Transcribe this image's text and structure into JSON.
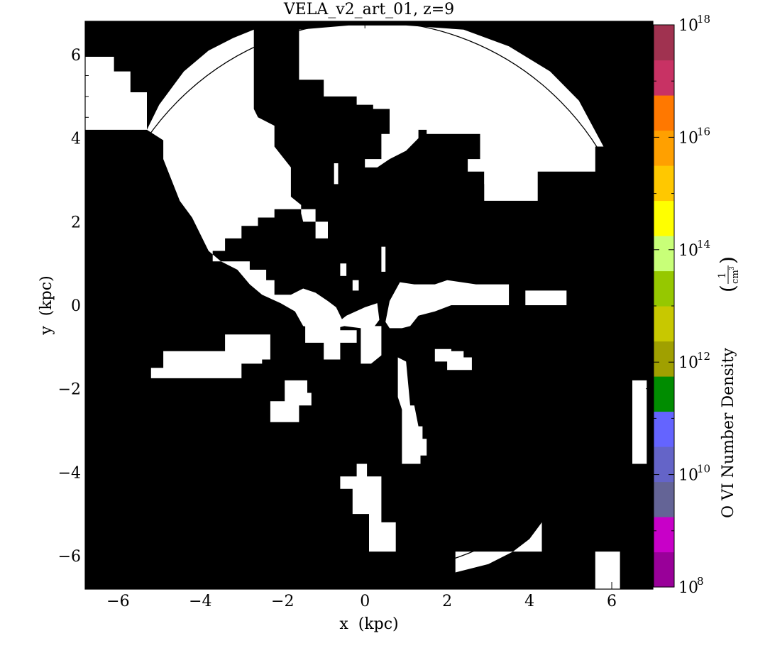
{
  "chart_data": {
    "type": "heatmap",
    "title": "VELA_v2_art_01, z=9",
    "xlabel": "x  (kpc)",
    "ylabel": "y  (kpc)",
    "xlim": [
      -6.8,
      7.0
    ],
    "ylim": [
      -6.8,
      6.8
    ],
    "x_ticks": [
      {
        "value": -6,
        "label": "−6"
      },
      {
        "value": -4,
        "label": "−4"
      },
      {
        "value": -2,
        "label": "−2"
      },
      {
        "value": 0,
        "label": "0"
      },
      {
        "value": 2,
        "label": "2"
      },
      {
        "value": 4,
        "label": "4"
      },
      {
        "value": 6,
        "label": "6"
      }
    ],
    "y_ticks": [
      {
        "value": 6,
        "label": "6"
      },
      {
        "value": 4,
        "label": "4"
      },
      {
        "value": 2,
        "label": "2"
      },
      {
        "value": 0,
        "label": "0"
      },
      {
        "value": -2,
        "label": "−2"
      },
      {
        "value": -4,
        "label": "−4"
      },
      {
        "value": -6,
        "label": "−6"
      }
    ],
    "circle": {
      "center": [
        0.1,
        0.2
      ],
      "radius": 6.6
    },
    "colorbar": {
      "label": "O VI Number Density",
      "unit_numerator": "1",
      "unit_denominator": "cm",
      "unit_power": "3",
      "scale": "log",
      "range_exponents": [
        8,
        18
      ],
      "ticks": [
        {
          "base": "10",
          "exp": "18",
          "value_exp": 18
        },
        {
          "base": "10",
          "exp": "16",
          "value_exp": 16
        },
        {
          "base": "10",
          "exp": "14",
          "value_exp": 14
        },
        {
          "base": "10",
          "exp": "12",
          "value_exp": 12
        },
        {
          "base": "10",
          "exp": "10",
          "value_exp": 10
        },
        {
          "base": "10",
          "exp": "8",
          "value_exp": 8
        }
      ],
      "colors": [
        "#990099",
        "#c800c8",
        "#646496",
        "#6464c8",
        "#6464ff",
        "#008c00",
        "#a0a000",
        "#c8c800",
        "#96c800",
        "#c8ff78",
        "#ffff00",
        "#ffc800",
        "#ffa000",
        "#ff7800",
        "#c83264",
        "#a03250"
      ]
    },
    "regions": [
      {
        "value": "high",
        "color": "#ffffff",
        "shapes": [
          [
            [
              -6.8,
              5.95
            ],
            [
              -6.1,
              5.95
            ],
            [
              -6.1,
              5.6
            ],
            [
              -5.7,
              5.6
            ],
            [
              -5.7,
              5.1
            ],
            [
              -5.3,
              5.1
            ],
            [
              -5.3,
              4.2
            ],
            [
              -5.5,
              4.2
            ],
            [
              -6.8,
              4.2
            ]
          ],
          [
            [
              -5.3,
              4.2
            ],
            [
              -5.0,
              4.8
            ],
            [
              -4.4,
              5.6
            ],
            [
              -3.8,
              6.1
            ],
            [
              -3.2,
              6.4
            ],
            [
              -2.7,
              6.6
            ],
            [
              -2.7,
              5.3
            ],
            [
              -2.7,
              4.7
            ],
            [
              -2.6,
              4.5
            ],
            [
              -2.2,
              4.3
            ],
            [
              -2.2,
              3.8
            ],
            [
              -1.8,
              3.3
            ],
            [
              -1.8,
              2.6
            ],
            [
              -1.55,
              2.4
            ],
            [
              -1.55,
              2.2
            ],
            [
              -1.5,
              2.0
            ],
            [
              -0.9,
              2.0
            ],
            [
              -0.9,
              1.6
            ],
            [
              -1.2,
              1.6
            ],
            [
              -1.2,
              2.3
            ],
            [
              -1.8,
              2.3
            ],
            [
              -2.2,
              2.3
            ],
            [
              -2.2,
              2.1
            ],
            [
              -2.6,
              2.1
            ],
            [
              -2.6,
              1.9
            ],
            [
              -3.0,
              1.9
            ],
            [
              -3.0,
              1.6
            ],
            [
              -3.4,
              1.6
            ],
            [
              -3.4,
              1.3
            ],
            [
              -3.7,
              1.3
            ],
            [
              -3.7,
              1.05
            ],
            [
              -2.8,
              1.05
            ],
            [
              -2.8,
              0.85
            ],
            [
              -2.4,
              0.85
            ],
            [
              -2.4,
              0.6
            ],
            [
              -2.2,
              0.6
            ],
            [
              -2.2,
              0.25
            ],
            [
              -1.8,
              0.25
            ],
            [
              -1.5,
              0.4
            ],
            [
              -1.2,
              0.3
            ],
            [
              -0.9,
              0.1
            ],
            [
              -0.7,
              -0.05
            ],
            [
              -0.55,
              -0.35
            ],
            [
              -0.8,
              -0.55
            ],
            [
              -1.2,
              -0.55
            ],
            [
              -1.5,
              -0.5
            ],
            [
              -1.7,
              -0.15
            ],
            [
              -2.05,
              0.05
            ],
            [
              -2.5,
              0.25
            ],
            [
              -2.8,
              0.5
            ],
            [
              -3.1,
              0.85
            ],
            [
              -3.5,
              1.05
            ],
            [
              -3.8,
              1.3
            ],
            [
              -4.2,
              2.1
            ],
            [
              -4.5,
              2.5
            ],
            [
              -4.9,
              3.5
            ],
            [
              -4.9,
              3.95
            ]
          ],
          [
            [
              -1.6,
              6.6
            ],
            [
              -1.6,
              5.4
            ],
            [
              -1.0,
              5.4
            ],
            [
              -1.0,
              5.0
            ],
            [
              -0.6,
              5.0
            ],
            [
              -0.6,
              5.0
            ],
            [
              -0.2,
              5.0
            ],
            [
              -0.2,
              4.8
            ],
            [
              0.2,
              4.8
            ],
            [
              0.2,
              4.7
            ],
            [
              0.6,
              4.7
            ],
            [
              0.6,
              4.1
            ],
            [
              0.4,
              4.1
            ],
            [
              0.4,
              3.5
            ],
            [
              0.0,
              3.5
            ],
            [
              0.0,
              3.3
            ],
            [
              0.3,
              3.3
            ],
            [
              0.6,
              3.5
            ],
            [
              1.0,
              3.7
            ],
            [
              1.3,
              4.0
            ],
            [
              1.3,
              4.2
            ],
            [
              1.5,
              4.2
            ],
            [
              1.5,
              4.1
            ],
            [
              2.8,
              4.1
            ],
            [
              2.8,
              3.5
            ],
            [
              2.5,
              3.5
            ],
            [
              2.5,
              3.2
            ],
            [
              2.9,
              3.2
            ],
            [
              2.9,
              2.5
            ],
            [
              4.2,
              2.5
            ],
            [
              4.2,
              3.2
            ],
            [
              5.6,
              3.2
            ],
            [
              5.6,
              3.8
            ],
            [
              5.8,
              3.8
            ],
            [
              5.2,
              4.9
            ],
            [
              4.5,
              5.6
            ],
            [
              3.5,
              6.2
            ],
            [
              2.4,
              6.6
            ],
            [
              1.0,
              6.7
            ],
            [
              -0.4,
              6.7
            ]
          ],
          [
            [
              -0.75,
              3.4
            ],
            [
              -0.65,
              3.4
            ],
            [
              -0.65,
              2.9
            ],
            [
              -0.75,
              2.9
            ]
          ],
          [
            [
              2.9,
              3.2
            ],
            [
              3.3,
              3.2
            ],
            [
              3.3,
              2.9
            ],
            [
              2.9,
              2.9
            ]
          ],
          [
            [
              0.5,
              -0.4
            ],
            [
              0.6,
              0.1
            ],
            [
              0.85,
              0.55
            ],
            [
              1.2,
              0.5
            ],
            [
              1.7,
              0.5
            ],
            [
              2.0,
              0.6
            ],
            [
              2.7,
              0.5
            ],
            [
              3.5,
              0.5
            ],
            [
              3.5,
              0.0
            ],
            [
              3.9,
              0.0
            ],
            [
              3.9,
              0.35
            ],
            [
              4.9,
              0.35
            ],
            [
              4.9,
              0.0
            ],
            [
              4.0,
              0.0
            ],
            [
              3.4,
              0.0
            ],
            [
              2.5,
              0.0
            ],
            [
              2.1,
              0.0
            ],
            [
              1.7,
              -0.15
            ],
            [
              1.3,
              -0.25
            ],
            [
              1.1,
              -0.5
            ],
            [
              0.9,
              -0.55
            ],
            [
              0.6,
              -0.55
            ]
          ],
          [
            [
              -0.1,
              -1.2
            ],
            [
              -0.1,
              -0.5
            ],
            [
              0.4,
              -0.5
            ],
            [
              0.4,
              -1.2
            ],
            [
              0.15,
              -1.4
            ],
            [
              -0.1,
              -1.4
            ]
          ],
          [
            [
              -1.45,
              -0.9
            ],
            [
              -1.45,
              -0.35
            ],
            [
              -0.6,
              -0.35
            ],
            [
              -0.6,
              -0.6
            ],
            [
              -0.2,
              -0.6
            ],
            [
              -0.2,
              -0.9
            ],
            [
              -0.6,
              -0.9
            ],
            [
              -0.6,
              -1.3
            ],
            [
              -1.0,
              -1.3
            ],
            [
              -1.0,
              -0.9
            ]
          ],
          [
            [
              -5.2,
              -1.5
            ],
            [
              -4.9,
              -1.5
            ],
            [
              -4.9,
              -1.1
            ],
            [
              -3.4,
              -1.1
            ],
            [
              -3.4,
              -0.7
            ],
            [
              -2.3,
              -0.7
            ],
            [
              -2.3,
              -1.3
            ],
            [
              -2.5,
              -1.3
            ],
            [
              -2.5,
              -1.4
            ],
            [
              -3.0,
              -1.4
            ],
            [
              -3.0,
              -1.75
            ],
            [
              -5.2,
              -1.75
            ]
          ],
          [
            [
              -2.3,
              -2.3
            ],
            [
              -1.95,
              -2.3
            ],
            [
              -1.95,
              -1.8
            ],
            [
              -1.4,
              -1.8
            ],
            [
              -1.4,
              -2.1
            ],
            [
              -1.3,
              -2.1
            ],
            [
              -1.3,
              -2.4
            ],
            [
              -1.6,
              -2.4
            ],
            [
              -1.6,
              -2.8
            ],
            [
              -2.3,
              -2.8
            ]
          ],
          [
            [
              0.8,
              -1.25
            ],
            [
              1.0,
              -1.35
            ],
            [
              1.1,
              -2.4
            ],
            [
              1.2,
              -2.4
            ],
            [
              1.3,
              -2.9
            ],
            [
              1.4,
              -2.9
            ],
            [
              1.4,
              -3.2
            ],
            [
              1.5,
              -3.2
            ],
            [
              1.5,
              -3.6
            ],
            [
              1.35,
              -3.6
            ],
            [
              1.35,
              -3.8
            ],
            [
              0.9,
              -3.8
            ],
            [
              0.9,
              -3.5
            ],
            [
              0.9,
              -2.5
            ],
            [
              0.8,
              -2.2
            ]
          ],
          [
            [
              1.7,
              -1.35
            ],
            [
              1.7,
              -1.05
            ],
            [
              2.1,
              -1.05
            ],
            [
              2.1,
              -1.1
            ],
            [
              2.4,
              -1.1
            ],
            [
              2.4,
              -1.25
            ],
            [
              2.6,
              -1.25
            ],
            [
              2.6,
              -1.55
            ],
            [
              2.4,
              -1.55
            ],
            [
              2.0,
              -1.55
            ],
            [
              2.0,
              -1.35
            ]
          ],
          [
            [
              -0.6,
              -4.4
            ],
            [
              -0.6,
              -4.1
            ],
            [
              -0.2,
              -4.1
            ],
            [
              -0.2,
              -3.8
            ],
            [
              0.05,
              -3.8
            ],
            [
              0.05,
              -4.1
            ],
            [
              0.4,
              -4.1
            ],
            [
              0.4,
              -5.2
            ],
            [
              0.75,
              -5.2
            ],
            [
              0.75,
              -5.9
            ],
            [
              0.1,
              -5.9
            ],
            [
              0.1,
              -5.0
            ],
            [
              -0.3,
              -5.0
            ],
            [
              -0.3,
              -4.4
            ]
          ],
          [
            [
              6.5,
              -1.8
            ],
            [
              6.85,
              -1.8
            ],
            [
              6.85,
              -3.8
            ],
            [
              6.5,
              -3.8
            ]
          ],
          [
            [
              2.2,
              -5.9
            ],
            [
              2.2,
              -6.4
            ],
            [
              3.0,
              -6.2
            ],
            [
              3.6,
              -5.9
            ],
            [
              4.0,
              -5.6
            ],
            [
              4.3,
              -5.2
            ],
            [
              4.3,
              -5.9
            ]
          ],
          [
            [
              5.6,
              -5.9
            ],
            [
              5.6,
              -6.8
            ],
            [
              6.2,
              -6.8
            ],
            [
              6.2,
              -5.9
            ]
          ],
          [
            [
              -0.9,
              -0.6
            ],
            [
              -0.45,
              -0.25
            ],
            [
              0.0,
              -0.05
            ],
            [
              0.3,
              0.05
            ],
            [
              0.35,
              -0.35
            ],
            [
              0.2,
              -0.55
            ],
            [
              -0.1,
              -0.55
            ],
            [
              -0.5,
              -0.5
            ]
          ],
          [
            [
              -0.3,
              0.6
            ],
            [
              -0.15,
              0.6
            ],
            [
              -0.15,
              0.35
            ],
            [
              -0.3,
              0.35
            ]
          ],
          [
            [
              -0.6,
              1.0
            ],
            [
              -0.45,
              1.0
            ],
            [
              -0.45,
              0.7
            ],
            [
              -0.6,
              0.7
            ]
          ],
          [
            [
              0.4,
              1.4
            ],
            [
              0.5,
              1.4
            ],
            [
              0.5,
              0.8
            ],
            [
              0.4,
              0.8
            ]
          ]
        ]
      }
    ]
  }
}
